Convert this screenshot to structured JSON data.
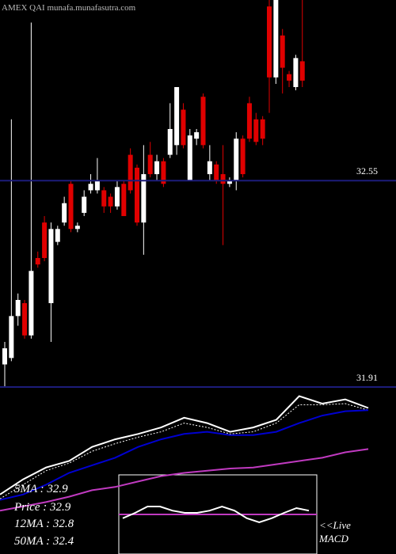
{
  "chart_data": {
    "type": "candlestick",
    "title": "AMEX  QAI munafa.munafasutra.com",
    "up_color": "#ffffff",
    "down_color": "#e00000",
    "ylim": [
      31.91,
      33.11
    ],
    "yticks": [
      31.91,
      32.55
    ],
    "ohlc": [
      [
        31.98,
        32.05,
        31.91,
        32.03
      ],
      [
        32.0,
        32.74,
        31.99,
        32.13
      ],
      [
        32.13,
        32.2,
        32.1,
        32.18
      ],
      [
        32.17,
        32.18,
        32.06,
        32.07
      ],
      [
        32.07,
        33.04,
        32.06,
        32.27
      ],
      [
        32.31,
        32.33,
        32.28,
        32.29
      ],
      [
        32.42,
        32.44,
        32.3,
        32.31
      ],
      [
        32.17,
        32.42,
        32.05,
        32.4
      ],
      [
        32.36,
        32.41,
        32.35,
        32.4
      ],
      [
        32.42,
        32.5,
        32.41,
        32.48
      ],
      [
        32.54,
        32.55,
        32.39,
        32.4
      ],
      [
        32.4,
        32.42,
        32.39,
        32.41
      ],
      [
        32.45,
        32.52,
        32.44,
        32.5
      ],
      [
        32.52,
        32.57,
        32.51,
        32.54
      ],
      [
        32.52,
        32.62,
        32.51,
        32.55
      ],
      [
        32.52,
        32.53,
        32.45,
        32.47
      ],
      [
        32.5,
        32.51,
        32.45,
        32.47
      ],
      [
        32.47,
        32.55,
        32.46,
        32.53
      ],
      [
        32.54,
        32.55,
        32.44,
        32.44
      ],
      [
        32.63,
        32.65,
        32.51,
        32.52
      ],
      [
        32.59,
        32.6,
        32.41,
        32.42
      ],
      [
        32.42,
        32.66,
        32.32,
        32.57
      ],
      [
        32.63,
        32.67,
        32.56,
        32.57
      ],
      [
        32.57,
        32.63,
        32.55,
        32.61
      ],
      [
        32.61,
        32.62,
        32.53,
        32.54
      ],
      [
        32.63,
        32.79,
        32.62,
        32.71
      ],
      [
        32.66,
        32.84,
        32.63,
        32.84
      ],
      [
        32.77,
        32.79,
        32.65,
        32.66
      ],
      [
        32.55,
        32.71,
        32.55,
        32.69
      ],
      [
        32.68,
        32.71,
        32.66,
        32.7
      ],
      [
        32.81,
        32.82,
        32.65,
        32.66
      ],
      [
        32.57,
        32.66,
        32.55,
        32.61
      ],
      [
        32.6,
        32.61,
        32.54,
        32.55
      ],
      [
        32.57,
        32.66,
        32.35,
        32.54
      ],
      [
        32.54,
        32.56,
        32.53,
        32.55
      ],
      [
        32.55,
        32.7,
        32.52,
        32.68
      ],
      [
        32.68,
        32.69,
        32.56,
        32.57
      ],
      [
        32.79,
        32.81,
        32.67,
        32.68
      ],
      [
        32.74,
        32.76,
        32.66,
        32.67
      ],
      [
        32.74,
        32.75,
        32.66,
        32.68
      ],
      [
        33.09,
        33.2,
        32.76,
        32.87
      ],
      [
        32.87,
        33.25,
        32.85,
        33.15
      ],
      [
        33.0,
        33.02,
        32.82,
        32.9
      ],
      [
        32.88,
        32.89,
        32.84,
        32.86
      ],
      [
        32.84,
        32.94,
        32.83,
        32.93
      ],
      [
        32.92,
        33.2,
        32.84,
        32.86
      ]
    ],
    "ma_panel": {
      "ylim": [
        31.6,
        33.1
      ],
      "series": [
        {
          "color": "#ffffff",
          "dashed": false,
          "values": [
            32.15,
            32.29,
            32.4,
            32.46,
            32.59,
            32.66,
            32.71,
            32.77,
            32.86,
            32.81,
            32.73,
            32.77,
            32.84,
            33.06,
            32.99,
            33.03,
            32.95
          ]
        },
        {
          "color": "#ffffff",
          "dashed": true,
          "values": [
            32.11,
            32.24,
            32.37,
            32.44,
            32.55,
            32.62,
            32.68,
            32.73,
            32.81,
            32.77,
            32.71,
            32.73,
            32.81,
            32.98,
            32.98,
            32.99,
            32.93
          ]
        },
        {
          "color": "#0000d0",
          "dashed": false,
          "values": [
            32.1,
            32.15,
            32.24,
            32.35,
            32.42,
            32.49,
            32.59,
            32.66,
            32.71,
            32.73,
            32.7,
            32.7,
            32.73,
            32.81,
            32.88,
            32.92,
            32.93
          ]
        },
        {
          "color": "#c03ac0",
          "dashed": false,
          "values": [
            32.0,
            32.04,
            32.08,
            32.13,
            32.19,
            32.22,
            32.27,
            32.32,
            32.35,
            32.37,
            32.39,
            32.4,
            32.43,
            32.46,
            32.49,
            32.54,
            32.57
          ]
        }
      ],
      "legend": [
        "5MA : 32.9",
        "Price : 32.9",
        "12MA : 32.8",
        "50MA : 32.4"
      ]
    },
    "macd": {
      "ylim": [
        -1,
        1
      ],
      "signal": 0,
      "signal_color": "#c03ac0",
      "line_color": "#ffffff",
      "values": [
        -0.12,
        0.05,
        0.25,
        0.25,
        0.12,
        0.05,
        0.05,
        0.12,
        0.25,
        0.12,
        -0.12,
        -0.25,
        -0.12,
        0.05,
        0.2,
        0.12
      ],
      "label": [
        "<<Live",
        "MACD"
      ]
    }
  }
}
